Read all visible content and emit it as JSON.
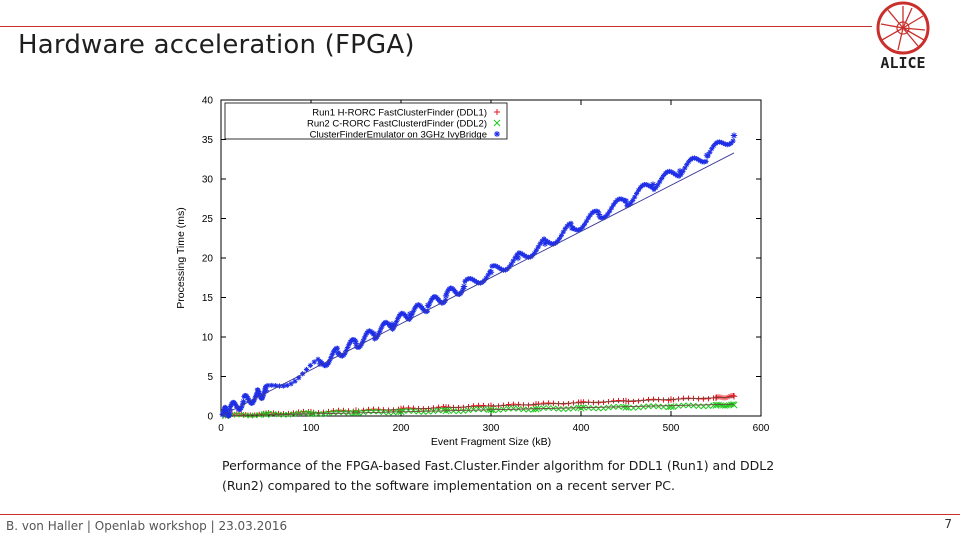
{
  "slide": {
    "title": "Hardware acceleration (FPGA)",
    "caption": "Performance of the FPGA-based Fast.Cluster.Finder algorithm for DDL1 (Run1) and DDL2 (Run2) compared to the software implementation on a recent server PC.",
    "footer": "B. von Haller | Openlab workshop | 23.03.2016",
    "page_number": "7",
    "logo_text": "ALICE",
    "accent_color": "#c9302c"
  },
  "chart_data": {
    "type": "scatter",
    "xlabel": "Event Fragment Size (kB)",
    "ylabel": "Processing Time (ms)",
    "xlim": [
      0,
      600
    ],
    "ylim": [
      0,
      40
    ],
    "xticks": [
      "0",
      "100",
      "200",
      "300",
      "400",
      "500",
      "600"
    ],
    "yticks": [
      "0",
      "5",
      "10",
      "15",
      "20",
      "25",
      "30",
      "35",
      "40"
    ],
    "grid": false,
    "legend_position": "top-left",
    "series": [
      {
        "name": "Run1 H-RORC FastClusterFinder (DDL1)",
        "color": "#e8141e",
        "marker": "+",
        "x": [
          5,
          50,
          100,
          150,
          200,
          250,
          300,
          350,
          400,
          450,
          500,
          550,
          570
        ],
        "y": [
          0.1,
          0.3,
          0.5,
          0.7,
          0.9,
          1.1,
          1.3,
          1.5,
          1.7,
          1.9,
          2.1,
          2.3,
          2.5
        ],
        "fit": [
          [
            0,
            0.0
          ],
          [
            570,
            2.4
          ]
        ]
      },
      {
        "name": "Run2 C-RORC FastClusterdFinder (DDL2)",
        "color": "#1ec81e",
        "marker": "x",
        "x": [
          5,
          50,
          100,
          150,
          200,
          250,
          300,
          350,
          400,
          450,
          500,
          550,
          570
        ],
        "y": [
          0.05,
          0.2,
          0.3,
          0.45,
          0.55,
          0.65,
          0.8,
          0.9,
          1.0,
          1.1,
          1.2,
          1.35,
          1.4
        ],
        "fit": [
          [
            0,
            0.0
          ],
          [
            570,
            1.5
          ]
        ]
      },
      {
        "name": "ClusterFinderEmulator on 3GHz IvyBridge",
        "color": "#1f2fe6",
        "marker": "*",
        "x": [
          2,
          10,
          25,
          40,
          50,
          110,
          130,
          150,
          170,
          190,
          210,
          230,
          250,
          270,
          300,
          330,
          360,
          390,
          420,
          450,
          480,
          510,
          540,
          570
        ],
        "y": [
          0.2,
          0.8,
          1.8,
          2.6,
          3.2,
          6.6,
          8.0,
          9.2,
          10.4,
          11.6,
          12.9,
          14.0,
          15.2,
          16.4,
          18.2,
          20.0,
          21.8,
          23.8,
          25.5,
          27.2,
          29.3,
          31.0,
          33.0,
          35.5
        ],
        "fit": [
          [
            0,
            0.0
          ],
          [
            570,
            33.3
          ]
        ]
      }
    ]
  }
}
